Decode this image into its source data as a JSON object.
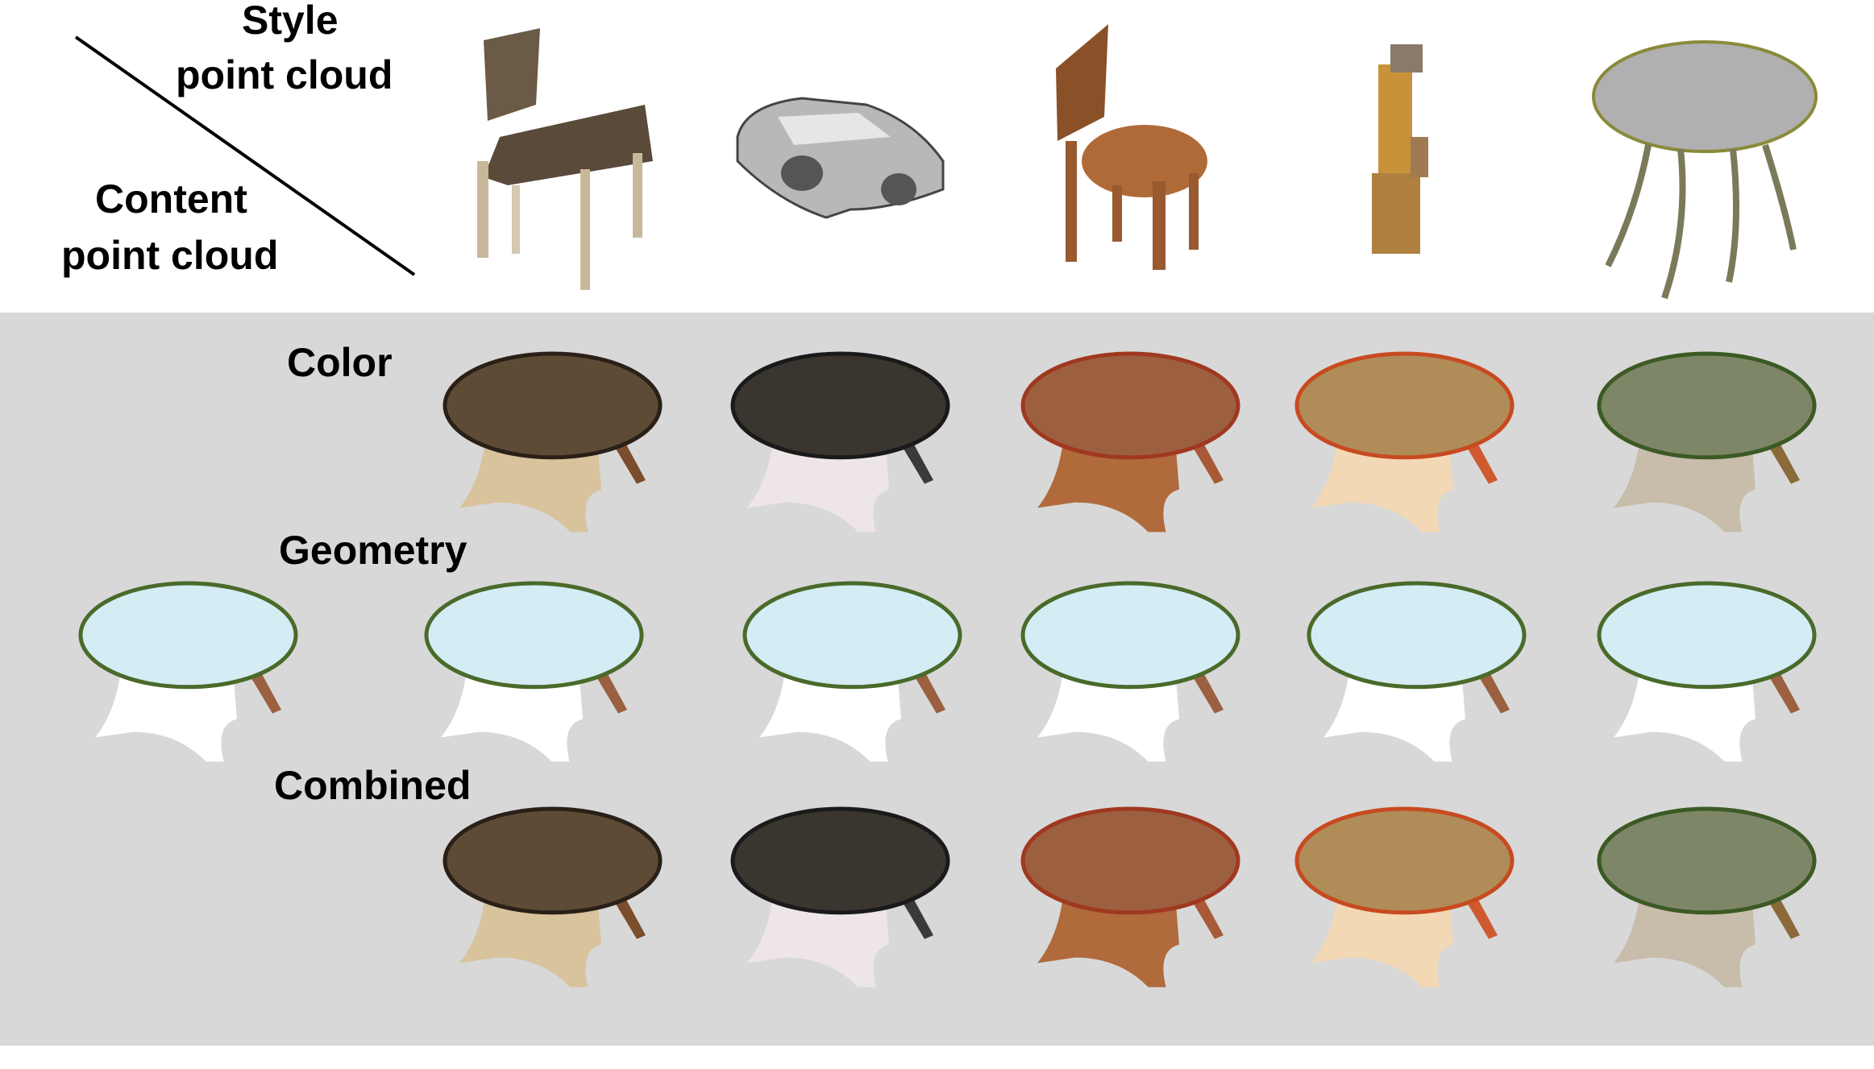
{
  "header": {
    "style_label_line1": "Style",
    "style_label_line2": "point cloud",
    "content_label_line1": "Content",
    "content_label_line2": "point cloud"
  },
  "rows": {
    "color": "Color",
    "geometry": "Geometry",
    "combined": "Combined"
  },
  "style_objects": [
    {
      "kind": "chair",
      "colors": [
        "#5a4a3a",
        "#c8b89a"
      ]
    },
    {
      "kind": "car",
      "colors": [
        "#3a3a3a",
        "#d0d0d0"
      ]
    },
    {
      "kind": "tall-chair",
      "colors": [
        "#8a5028",
        "#b06a38"
      ]
    },
    {
      "kind": "narrow-object",
      "colors": [
        "#c8923a",
        "#a07a50"
      ]
    },
    {
      "kind": "round-table",
      "colors": [
        "#b0b0b0",
        "#7a7a5a"
      ]
    }
  ],
  "palettes": [
    {
      "top": "#5e4b36",
      "rim": "#2a2018",
      "base": "#d8c39c",
      "leg": "#7a4e2c"
    },
    {
      "top": "#3a352e",
      "rim": "#1a1a1a",
      "base": "#eee6e6",
      "leg": "#3a3a3a"
    },
    {
      "top": "#9c6040",
      "rim": "#a03820",
      "base": "#b06a3c",
      "leg": "#a85a38"
    },
    {
      "top": "#b08c58",
      "rim": "#c84a20",
      "base": "#f2d8b4",
      "leg": "#d05a30"
    },
    {
      "top": "#7e8668",
      "rim": "#3c5a24",
      "base": "#c8bcaa",
      "leg": "#8a6a38"
    }
  ],
  "geometry_palette": {
    "top": "#d4ecf4",
    "rim": "#4a6a2a",
    "base": "#ffffff",
    "leg": "#9a6040"
  }
}
